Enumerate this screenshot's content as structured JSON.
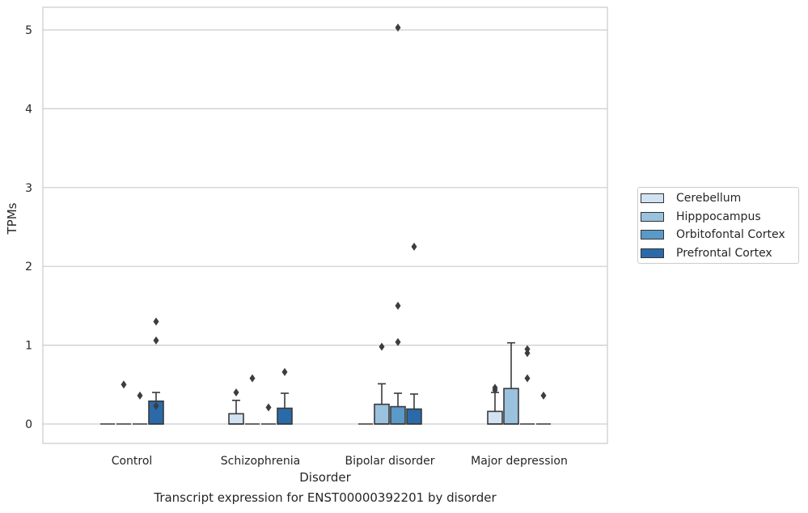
{
  "chart_data": {
    "type": "box",
    "title": "",
    "xlabel": "Disorder",
    "ylabel": "TPMs",
    "caption": "Transcript expression for ENST00000392201 by disorder",
    "categories": [
      "Control",
      "Schizophrenia",
      "Bipolar disorder",
      "Major depression"
    ],
    "ylim": [
      -0.25,
      5.29
    ],
    "yticks": [
      "0",
      "1",
      "2",
      "3",
      "4",
      "5"
    ],
    "grid": true,
    "legend_position": "right",
    "series": [
      {
        "name": "Cerebellum",
        "color": "#d1e2f2",
        "boxes": [
          {
            "q1": 0,
            "median": 0,
            "q3": 0,
            "whisker_low": 0,
            "whisker_high": 0,
            "outliers": []
          },
          {
            "q1": 0,
            "median": 0,
            "q3": 0.13,
            "whisker_low": 0,
            "whisker_high": 0.3,
            "outliers": [
              0.4
            ]
          },
          {
            "q1": 0,
            "median": 0,
            "q3": 0,
            "whisker_low": 0,
            "whisker_high": 0,
            "outliers": []
          },
          {
            "q1": 0,
            "median": 0,
            "q3": 0.16,
            "whisker_low": 0,
            "whisker_high": 0.4,
            "outliers": [
              0.43,
              0.46
            ]
          }
        ]
      },
      {
        "name": "Hipppocampus",
        "color": "#9ac1dd",
        "boxes": [
          {
            "q1": 0,
            "median": 0,
            "q3": 0,
            "whisker_low": 0,
            "whisker_high": 0,
            "outliers": [
              0.5
            ]
          },
          {
            "q1": 0,
            "median": 0,
            "q3": 0,
            "whisker_low": 0,
            "whisker_high": 0,
            "outliers": [
              0.58
            ]
          },
          {
            "q1": 0,
            "median": 0,
            "q3": 0.25,
            "whisker_low": 0,
            "whisker_high": 0.51,
            "outliers": [
              0.98
            ]
          },
          {
            "q1": 0,
            "median": 0,
            "q3": 0.45,
            "whisker_low": 0,
            "whisker_high": 1.03,
            "outliers": []
          }
        ]
      },
      {
        "name": "Orbitofontal Cortex",
        "color": "#5a9ac8",
        "boxes": [
          {
            "q1": 0,
            "median": 0,
            "q3": 0,
            "whisker_low": 0,
            "whisker_high": 0,
            "outliers": [
              0.36
            ]
          },
          {
            "q1": 0,
            "median": 0,
            "q3": 0,
            "whisker_low": 0,
            "whisker_high": 0,
            "outliers": [
              0.21
            ]
          },
          {
            "q1": 0,
            "median": 0,
            "q3": 0.22,
            "whisker_low": 0,
            "whisker_high": 0.39,
            "outliers": [
              1.04,
              1.5,
              5.03
            ]
          },
          {
            "q1": 0,
            "median": 0,
            "q3": 0,
            "whisker_low": 0,
            "whisker_high": 0,
            "outliers": [
              0.58,
              0.9,
              0.95
            ]
          }
        ]
      },
      {
        "name": "Prefrontal Cortex",
        "color": "#2b6aa8",
        "boxes": [
          {
            "q1": 0,
            "median": 0,
            "q3": 0.29,
            "whisker_low": 0,
            "whisker_high": 0.4,
            "outliers": [
              0.23,
              1.06,
              1.3
            ]
          },
          {
            "q1": 0,
            "median": 0,
            "q3": 0.2,
            "whisker_low": 0,
            "whisker_high": 0.39,
            "outliers": [
              0.66
            ]
          },
          {
            "q1": 0,
            "median": 0,
            "q3": 0.19,
            "whisker_low": 0,
            "whisker_high": 0.38,
            "outliers": [
              2.25
            ]
          },
          {
            "q1": 0,
            "median": 0,
            "q3": 0,
            "whisker_low": 0,
            "whisker_high": 0,
            "outliers": [
              0.36
            ]
          }
        ]
      }
    ]
  }
}
